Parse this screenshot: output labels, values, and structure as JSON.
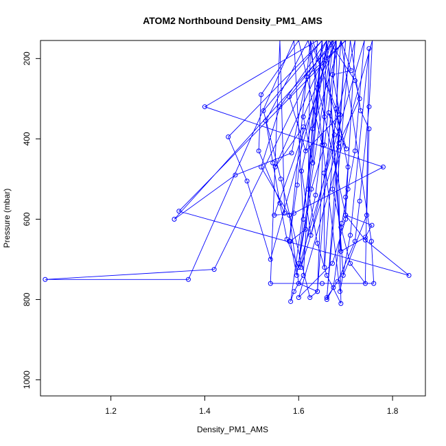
{
  "chart_data": {
    "type": "scatter",
    "mode": "lines+points",
    "title": "ATOM2 Northbound Density_PM1_AMS",
    "xlabel": "Density_PM1_AMS",
    "ylabel": "Pressure (mbar)",
    "xlim": [
      1.05,
      1.87
    ],
    "ylim": [
      1040,
      155
    ],
    "y_reversed": true,
    "x_ticks": [
      1.2,
      1.4,
      1.6,
      1.8
    ],
    "x_tick_labels": [
      "1.2",
      "1.4",
      "1.6",
      "1.8"
    ],
    "y_ticks": [
      200,
      400,
      600,
      800,
      1000
    ],
    "y_tick_labels": [
      "200",
      "400",
      "600",
      "800",
      "1000"
    ],
    "grid": false,
    "legend": "none",
    "color": "#0000ff",
    "series": [
      {
        "points": [
          [
            1.672,
            155
          ],
          [
            1.596,
            740
          ],
          [
            1.582,
            655
          ],
          [
            1.615,
            625
          ],
          [
            1.65,
            155
          ],
          [
            1.6,
            710
          ],
          [
            1.627,
            525
          ],
          [
            1.655,
            415
          ],
          [
            1.68,
            155
          ],
          [
            1.69,
            810
          ],
          [
            1.66,
            740
          ],
          [
            1.64,
            660
          ],
          [
            1.62,
            525
          ],
          [
            1.625,
            155
          ],
          [
            1.688,
            780
          ],
          [
            1.71,
            640
          ],
          [
            1.75,
            175
          ],
          [
            1.742,
            760
          ],
          [
            1.71,
            710
          ],
          [
            1.69,
            620
          ],
          [
            1.672,
            525
          ],
          [
            1.685,
            420
          ],
          [
            1.7,
            155
          ],
          [
            1.66,
            800
          ],
          [
            1.674,
            770
          ],
          [
            1.692,
            610
          ],
          [
            1.705,
            525
          ],
          [
            1.72,
            430
          ],
          [
            1.74,
            155
          ],
          [
            1.6,
            720
          ],
          [
            1.575,
            650
          ],
          [
            1.56,
            560
          ],
          [
            1.545,
            460
          ],
          [
            1.53,
            355
          ],
          [
            1.62,
            155
          ],
          [
            1.7,
            590
          ],
          [
            1.756,
            615
          ],
          [
            1.742,
            645
          ],
          [
            1.69,
            680
          ],
          [
            1.66,
            160
          ],
          [
            1.695,
            740
          ],
          [
            1.745,
            590
          ],
          [
            1.75,
            375
          ],
          [
            1.732,
            330
          ],
          [
            1.71,
            155
          ],
          [
            1.66,
            795
          ],
          [
            1.683,
            755
          ],
          [
            1.72,
            655
          ],
          [
            1.73,
            555
          ],
          [
            1.75,
            320
          ],
          [
            1.757,
            155
          ],
          [
            1.6,
            795
          ],
          [
            1.672,
            710
          ],
          [
            1.7,
            600
          ],
          [
            1.7,
            545
          ],
          [
            1.705,
            470
          ],
          [
            1.68,
            325
          ],
          [
            1.625,
            155
          ],
          [
            1.58,
            655
          ],
          [
            1.597,
            515
          ],
          [
            1.61,
            370
          ],
          [
            1.55,
            470
          ],
          [
            1.67,
            155
          ],
          [
            1.54,
            700
          ],
          [
            1.49,
            505
          ],
          [
            1.45,
            395
          ],
          [
            1.65,
            155
          ],
          [
            1.63,
            460
          ],
          [
            1.61,
            345
          ],
          [
            1.68,
            155
          ],
          [
            1.64,
            780
          ],
          [
            1.6,
            760
          ],
          [
            1.58,
            590
          ],
          [
            1.52,
            470
          ],
          [
            1.56,
            320
          ],
          [
            1.66,
            155
          ],
          [
            1.42,
            725
          ],
          [
            1.06,
            750
          ],
          [
            1.365,
            750
          ],
          [
            1.59,
            155
          ],
          [
            1.61,
            600
          ],
          [
            1.63,
            375
          ],
          [
            1.69,
            155
          ],
          [
            1.755,
            655
          ],
          [
            1.76,
            760
          ],
          [
            1.65,
            760
          ],
          [
            1.54,
            760
          ],
          [
            1.56,
            155
          ],
          [
            1.57,
            585
          ],
          [
            1.515,
            430
          ],
          [
            1.52,
            290
          ],
          [
            1.6,
            155
          ],
          [
            1.65,
            415
          ],
          [
            1.655,
            345
          ],
          [
            1.65,
            155
          ],
          [
            1.525,
            330
          ],
          [
            1.562,
            500
          ],
          [
            1.624,
            795
          ],
          [
            1.64,
            780
          ],
          [
            1.66,
            155
          ],
          [
            1.583,
            805
          ],
          [
            1.59,
            780
          ],
          [
            1.61,
            740
          ],
          [
            1.64,
            155
          ],
          [
            1.4,
            320
          ],
          [
            1.78,
            470
          ],
          [
            1.59,
            585
          ],
          [
            1.548,
            590
          ],
          [
            1.68,
            155
          ],
          [
            1.335,
            600
          ],
          [
            1.465,
            490
          ],
          [
            1.585,
            435
          ],
          [
            1.617,
            245
          ],
          [
            1.7,
            155
          ],
          [
            1.345,
            580
          ],
          [
            1.835,
            740
          ],
          [
            1.742,
            652
          ],
          [
            1.7,
            590
          ],
          [
            1.72,
            155
          ],
          [
            1.654,
            485
          ],
          [
            1.655,
            720
          ],
          [
            1.69,
            155
          ],
          [
            1.712,
            230
          ],
          [
            1.672,
            240
          ],
          [
            1.688,
            340
          ],
          [
            1.615,
            430
          ],
          [
            1.58,
            295
          ],
          [
            1.674,
            155
          ],
          [
            1.636,
            540
          ],
          [
            1.605,
            720
          ],
          [
            1.686,
            410
          ],
          [
            1.73,
            300
          ],
          [
            1.72,
            255
          ],
          [
            1.664,
            155
          ],
          [
            1.606,
            480
          ],
          [
            1.626,
            640
          ],
          [
            1.676,
            390
          ],
          [
            1.664,
            335
          ],
          [
            1.702,
            425
          ],
          [
            1.63,
            155
          ]
        ]
      }
    ]
  }
}
